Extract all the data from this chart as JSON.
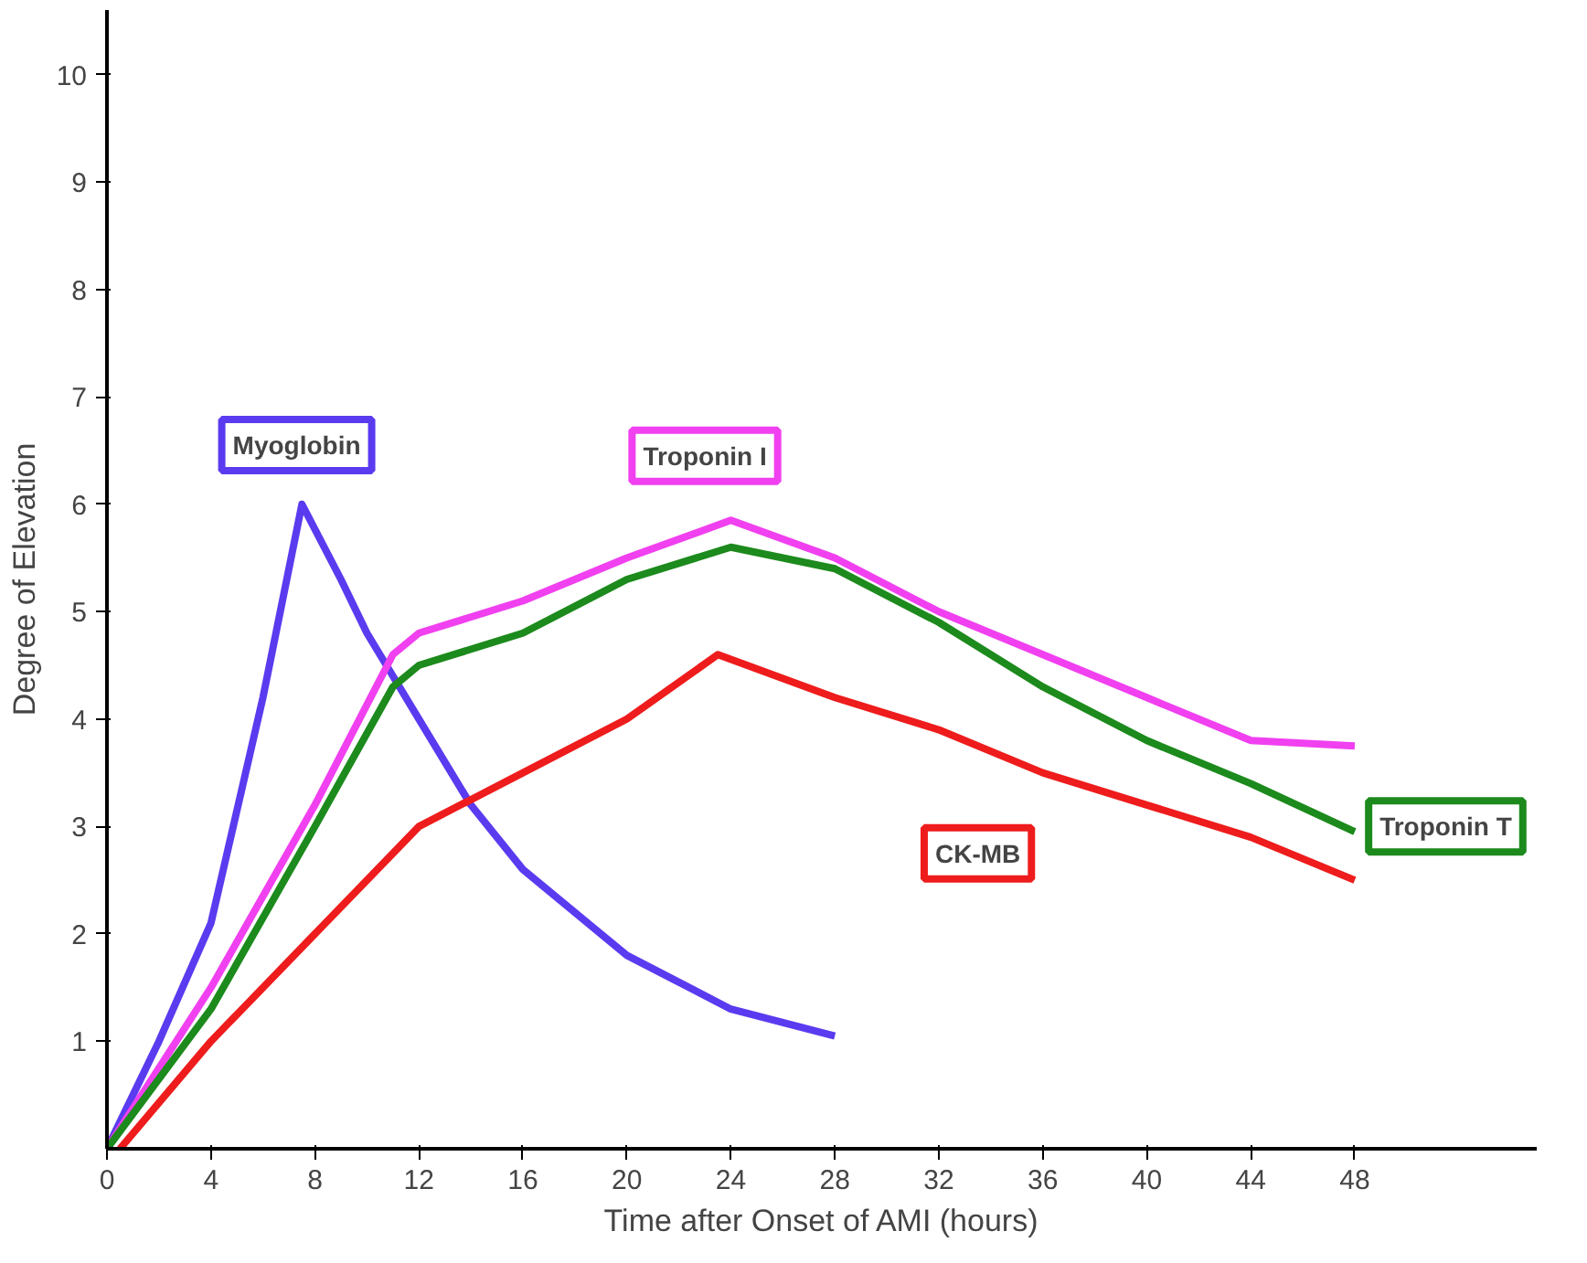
{
  "chart_data": {
    "type": "line",
    "xlabel": "Time after Onset of AMI (hours)",
    "ylabel": "Degree of Elevation",
    "xlim": [
      0,
      55
    ],
    "ylim": [
      0,
      10.6
    ],
    "xticks": [
      0,
      4,
      8,
      12,
      16,
      20,
      24,
      28,
      32,
      36,
      40,
      44,
      48
    ],
    "yticks": [
      1,
      2,
      3,
      4,
      5,
      6,
      7,
      8,
      9,
      10
    ],
    "grid": false,
    "marker": "none",
    "line_style": "solid",
    "series": [
      {
        "name": "Myoglobin",
        "color": "#5b3bef",
        "x": [
          0,
          2,
          4,
          6,
          7.5,
          9,
          10,
          12,
          14,
          16,
          20,
          24,
          28
        ],
        "values": [
          0,
          1,
          2.1,
          4.2,
          6.0,
          5.3,
          4.8,
          4.0,
          3.2,
          2.6,
          1.8,
          1.3,
          1.05
        ]
      },
      {
        "name": "Troponin I",
        "color": "#f040f0",
        "x": [
          0,
          4,
          8,
          11,
          12,
          16,
          20,
          24,
          28,
          32,
          36,
          40,
          44,
          48
        ],
        "values": [
          0,
          1.5,
          3.2,
          4.6,
          4.8,
          5.1,
          5.5,
          5.85,
          5.5,
          5.0,
          4.6,
          4.2,
          3.8,
          3.75
        ]
      },
      {
        "name": "CK-MB",
        "color": "#ee1c1c",
        "x": [
          0.5,
          4,
          8,
          12,
          16,
          20,
          23.5,
          28,
          32,
          36,
          40,
          44,
          48
        ],
        "values": [
          0,
          1.0,
          2.0,
          3.0,
          3.5,
          4.0,
          4.6,
          4.2,
          3.9,
          3.5,
          3.2,
          2.9,
          2.5
        ]
      },
      {
        "name": "Troponin T",
        "color": "#1c8a1c",
        "x": [
          0,
          4,
          8,
          11,
          12,
          16,
          20,
          24,
          28,
          32,
          36,
          40,
          44,
          48
        ],
        "values": [
          0,
          1.3,
          3.0,
          4.3,
          4.5,
          4.8,
          5.3,
          5.6,
          5.4,
          4.9,
          4.3,
          3.8,
          3.4,
          2.95
        ]
      }
    ]
  }
}
